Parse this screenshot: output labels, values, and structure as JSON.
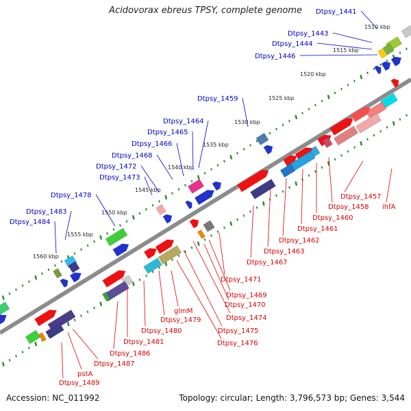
{
  "title": "Acidovorax ebreus TPSY, complete genome",
  "footer": {
    "accession": "Accession: NC_011992",
    "summary": "Topology: circular; Length: 3,796,573 bp; Genes: 3,544"
  },
  "colors": {
    "forward_label": "#0000cc",
    "reverse_label": "#dd0000",
    "backbone": "#8c8c8c",
    "tick": "#2e8b2e"
  },
  "ruler": [
    {
      "label": "1510 kbp"
    },
    {
      "label": "1515 kbp"
    },
    {
      "label": "1520 kbp"
    },
    {
      "label": "1525 kbp"
    },
    {
      "label": "1530 kbp"
    },
    {
      "label": "1535 kbp"
    },
    {
      "label": "1540 kbp"
    },
    {
      "label": "1545 kbp"
    },
    {
      "label": "1550 kbp"
    },
    {
      "label": "1555 kbp"
    },
    {
      "label": "1560 kbp"
    }
  ],
  "forward_labels": [
    "Dtpsy_1441",
    "Dtpsy_1443",
    "Dtpsy_1444",
    "Dtpsy_1446",
    "Dtpsy_1459",
    "Dtpsy_1464",
    "Dtpsy_1465",
    "Dtpsy_1466",
    "Dtpsy_1468",
    "Dtpsy_1472",
    "Dtpsy_1473",
    "Dtpsy_1478",
    "Dtpsy_1483",
    "Dtpsy_1484"
  ],
  "reverse_labels": [
    "Dtpsy_1457",
    "ihfA",
    "Dtpsy_1458",
    "Dtpsy_1460",
    "Dtpsy_1461",
    "Dtpsy_1462",
    "Dtpsy_1463",
    "Dtpsy_1467",
    "Dtpsy_1471",
    "Dtpsy_1469",
    "Dtpsy_1470",
    "Dtpsy_1474",
    "Dtpsy_1475",
    "Dtpsy_1476",
    "glmM",
    "Dtpsy_1479",
    "Dtpsy_1480",
    "Dtpsy_1481",
    "Dtpsy_1486",
    "Dtpsy_1487",
    "pstA",
    "Dtpsy_1489"
  ]
}
